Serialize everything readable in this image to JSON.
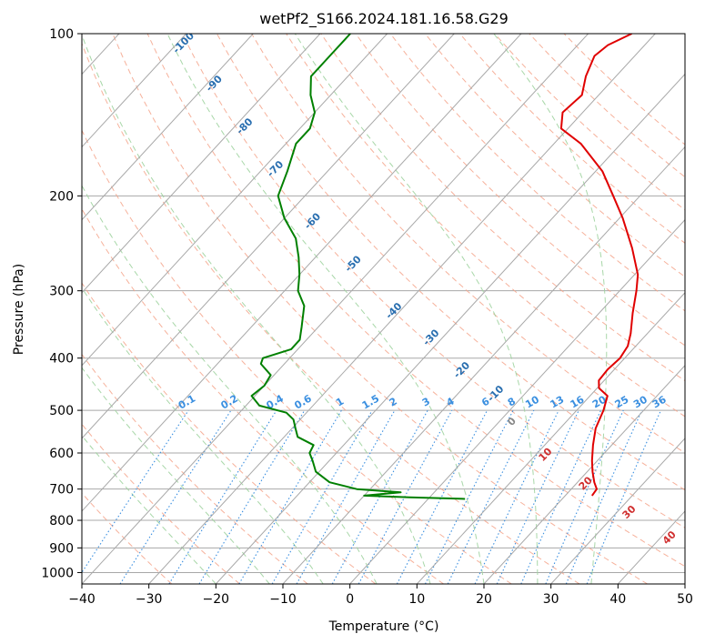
{
  "chart_data": {
    "type": "line",
    "title": "wetPf2_S166.2024.181.16.58.G29",
    "xlabel": "Temperature (°C)",
    "ylabel": "Pressure (hPa)",
    "xlim": [
      -40,
      50
    ],
    "ylim": [
      1050,
      100
    ],
    "y_scale": "log",
    "skew": true,
    "grid": true,
    "x_ticks": [
      -40,
      -30,
      -20,
      -10,
      0,
      10,
      20,
      30,
      40,
      50
    ],
    "y_ticks": [
      100,
      200,
      300,
      400,
      500,
      600,
      700,
      800,
      900,
      1000
    ],
    "colors": {
      "temperature": "#e00000",
      "dewpoint": "#008000",
      "isotherm": "#a8a8a8",
      "dry_adiabat": "#f4a38a",
      "moist_adiabat": "#9fd39f",
      "mixing_ratio": "#3a8fe0",
      "dry_adiabat_label": "#d03030",
      "moist_adiabat_label": "#2a6fb0"
    },
    "series": [
      {
        "key": "temperature",
        "pressure": [
          720,
          700,
          680,
          650,
          620,
          580,
          540,
          500,
          470,
          455,
          440,
          420,
          400,
          380,
          360,
          330,
          300,
          280,
          250,
          220,
          200,
          180,
          160,
          150,
          140,
          130,
          120,
          110,
          105,
          100
        ],
        "values": [
          24.0,
          23.8,
          22.5,
          20.8,
          19.2,
          17.2,
          15.3,
          14.0,
          12.6,
          10.3,
          9.2,
          9.0,
          9.3,
          8.8,
          7.5,
          5.0,
          2.5,
          0.5,
          -4.0,
          -9.5,
          -14.0,
          -19.0,
          -26.0,
          -31.0,
          -33.0,
          -32.5,
          -34.5,
          -36.0,
          -35.5,
          -33.5
        ]
      },
      {
        "key": "dewpoint",
        "pressure": [
          730,
          725,
          720,
          710,
          700,
          680,
          650,
          620,
          600,
          580,
          560,
          540,
          520,
          505,
          490,
          470,
          450,
          430,
          410,
          400,
          385,
          370,
          350,
          320,
          300,
          280,
          260,
          240,
          220,
          200,
          180,
          160,
          150,
          140,
          130,
          120,
          110,
          100
        ],
        "values": [
          5.5,
          -3.0,
          -10.0,
          -5.0,
          -12.0,
          -17.0,
          -20.5,
          -22.5,
          -24.0,
          -24.5,
          -28.0,
          -29.5,
          -31.0,
          -33.0,
          -38.0,
          -40.5,
          -40.0,
          -40.5,
          -43.5,
          -44.0,
          -41.0,
          -41.0,
          -42.5,
          -45.0,
          -48.0,
          -50.0,
          -52.5,
          -55.5,
          -60.0,
          -64.0,
          -66.0,
          -68.5,
          -68.5,
          -70.0,
          -73.0,
          -75.5,
          -75.5,
          -75.5
        ]
      }
    ],
    "isotherms": [
      -160,
      -150,
      -140,
      -130,
      -120,
      -110,
      -100,
      -90,
      -80,
      -70,
      -60,
      -50,
      -40,
      -30,
      -20,
      -10,
      0,
      10,
      20,
      30,
      40,
      50
    ],
    "dry_adiabats_c": [
      -30,
      -20,
      -10,
      0,
      10,
      20,
      30,
      40,
      50,
      60,
      70,
      80,
      90,
      100,
      110,
      120,
      130,
      140,
      150,
      160,
      170
    ],
    "dry_adiabat_labels": [
      "0",
      "10",
      "20",
      "30",
      "40"
    ],
    "moist_adiabats_c": [
      -20,
      -12,
      -4,
      4,
      12,
      20,
      28,
      36
    ],
    "moist_adiabat_labels": [
      "-100",
      "-90",
      "-80",
      "-70",
      "-60",
      "-50",
      "-40",
      "-30",
      "-20",
      "-10"
    ],
    "mixing_ratios": [
      0.1,
      0.2,
      0.4,
      0.6,
      1,
      1.5,
      2,
      3,
      4,
      6,
      8,
      10,
      13,
      16,
      20,
      25,
      30,
      36
    ],
    "mixing_ratio_labels": [
      "0.1",
      "0.2",
      "0.4",
      "0.6",
      "1",
      "1.5",
      "2",
      "3",
      "4",
      "6",
      "8",
      "10",
      "13",
      "16",
      "20",
      "25",
      "30",
      "36"
    ]
  }
}
